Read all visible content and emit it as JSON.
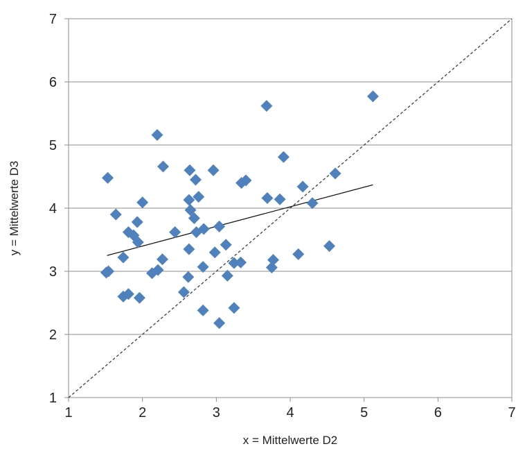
{
  "chart_data": {
    "type": "scatter",
    "title": "",
    "xlabel": "x = Mittelwerte D2",
    "ylabel": "y = Mittelwerte D3",
    "xlim": [
      1,
      7
    ],
    "ylim": [
      1,
      7
    ],
    "xticks": [
      "1",
      "2",
      "3",
      "4",
      "5",
      "6",
      "7"
    ],
    "yticks": [
      "1",
      "2",
      "3",
      "4",
      "5",
      "6",
      "7"
    ],
    "grid": "horizontal",
    "legend": "none",
    "marker_color": "#4f81bd",
    "points": [
      [
        1.53,
        4.48
      ],
      [
        1.64,
        3.9
      ],
      [
        1.51,
        2.98
      ],
      [
        1.54,
        3.0
      ],
      [
        1.74,
        3.22
      ],
      [
        1.74,
        2.6
      ],
      [
        1.81,
        2.64
      ],
      [
        1.81,
        3.62
      ],
      [
        1.88,
        3.57
      ],
      [
        1.93,
        3.78
      ],
      [
        1.94,
        3.46
      ],
      [
        1.96,
        2.58
      ],
      [
        2.0,
        4.09
      ],
      [
        2.13,
        2.97
      ],
      [
        2.21,
        3.02
      ],
      [
        2.2,
        5.16
      ],
      [
        2.27,
        3.19
      ],
      [
        2.28,
        4.66
      ],
      [
        2.44,
        3.62
      ],
      [
        2.56,
        2.67
      ],
      [
        2.62,
        2.91
      ],
      [
        2.63,
        3.35
      ],
      [
        2.63,
        4.13
      ],
      [
        2.64,
        4.6
      ],
      [
        2.65,
        3.97
      ],
      [
        2.7,
        3.84
      ],
      [
        2.72,
        4.45
      ],
      [
        2.73,
        3.62
      ],
      [
        2.76,
        4.18
      ],
      [
        2.82,
        3.07
      ],
      [
        2.83,
        3.67
      ],
      [
        2.82,
        2.38
      ],
      [
        2.96,
        4.6
      ],
      [
        2.98,
        3.3
      ],
      [
        3.04,
        3.71
      ],
      [
        3.04,
        2.18
      ],
      [
        3.13,
        3.42
      ],
      [
        3.15,
        2.93
      ],
      [
        3.24,
        2.42
      ],
      [
        3.24,
        3.13
      ],
      [
        3.33,
        3.14
      ],
      [
        3.34,
        4.4
      ],
      [
        3.4,
        4.44
      ],
      [
        3.68,
        5.62
      ],
      [
        3.69,
        4.16
      ],
      [
        3.75,
        3.06
      ],
      [
        3.77,
        3.18
      ],
      [
        3.86,
        4.14
      ],
      [
        3.91,
        4.81
      ],
      [
        4.11,
        3.27
      ],
      [
        4.17,
        4.34
      ],
      [
        4.3,
        4.08
      ],
      [
        4.53,
        3.4
      ],
      [
        4.61,
        4.55
      ],
      [
        5.12,
        5.77
      ]
    ],
    "trend_line": {
      "from": [
        1.52,
        3.25
      ],
      "to": [
        5.12,
        4.37
      ],
      "style": "solid"
    },
    "identity_line": {
      "from": [
        1,
        1
      ],
      "to": [
        7,
        7
      ],
      "style": "dashed"
    }
  }
}
